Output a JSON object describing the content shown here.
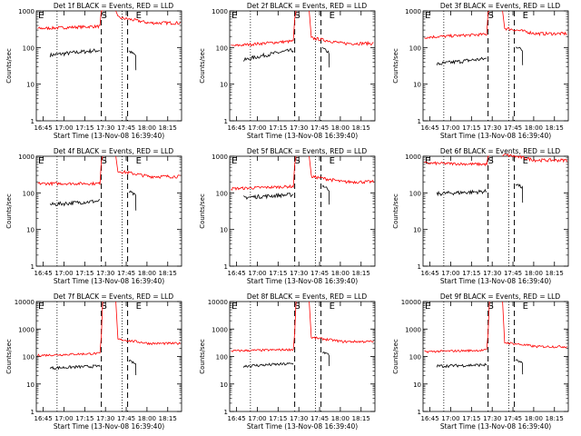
{
  "figure": {
    "x_ticks": [
      "16:45",
      "17:00",
      "17:15",
      "17:30",
      "17:45",
      "18:00",
      "18:15"
    ],
    "y_ticks": [
      "1",
      "10",
      "100",
      "1000",
      "10000"
    ],
    "ylabel": "Counts/sec",
    "xlabel": "Start Time (13-Nov-08 16:39:40)",
    "event_labels": {
      "E": "E",
      "S": "S"
    },
    "colors": {
      "events": "#000000",
      "lld": "#ff0000"
    }
  },
  "chart_data": [
    {
      "type": "line",
      "title": "Det 1f  BLACK = Events, RED = LLD",
      "ylim": [
        1,
        1000
      ],
      "series": [
        {
          "name": "BLACK = Events",
          "color": "#000000",
          "y_start": 62,
          "y_end": 85,
          "y_after": 80
        },
        {
          "name": "RED = LLD",
          "color": "#ff0000",
          "y_start": 330,
          "y_end": 380,
          "y_after": 470
        }
      ]
    },
    {
      "type": "line",
      "title": "Det 2f  BLACK = Events, RED = LLD",
      "ylim": [
        1,
        1000
      ],
      "series": [
        {
          "name": "BLACK = Events",
          "color": "#000000",
          "y_start": 45,
          "y_end": 85,
          "y_after": 95
        },
        {
          "name": "RED = LLD",
          "color": "#ff0000",
          "y_start": 110,
          "y_end": 150,
          "y_after": 130
        }
      ]
    },
    {
      "type": "line",
      "title": "Det 3f  BLACK = Events, RED = LLD",
      "ylim": [
        1,
        1000
      ],
      "series": [
        {
          "name": "BLACK = Events",
          "color": "#000000",
          "y_start": 35,
          "y_end": 50,
          "y_after": 110
        },
        {
          "name": "RED = LLD",
          "color": "#ff0000",
          "y_start": 190,
          "y_end": 230,
          "y_after": 240
        }
      ]
    },
    {
      "type": "line",
      "title": "Det 4f  BLACK = Events, RED = LLD",
      "ylim": [
        1,
        1000
      ],
      "series": [
        {
          "name": "BLACK = Events",
          "color": "#000000",
          "y_start": 48,
          "y_end": 60,
          "y_after": 110
        },
        {
          "name": "RED = LLD",
          "color": "#ff0000",
          "y_start": 180,
          "y_end": 180,
          "y_after": 280
        }
      ]
    },
    {
      "type": "line",
      "title": "Det 5f  BLACK = Events, RED = LLD",
      "ylim": [
        1,
        1000
      ],
      "series": [
        {
          "name": "BLACK = Events",
          "color": "#000000",
          "y_start": 75,
          "y_end": 90,
          "y_after": 160
        },
        {
          "name": "RED = LLD",
          "color": "#ff0000",
          "y_start": 130,
          "y_end": 150,
          "y_after": 200
        }
      ]
    },
    {
      "type": "line",
      "title": "Det 6f  BLACK = Events, RED = LLD",
      "ylim": [
        1,
        1000
      ],
      "series": [
        {
          "name": "BLACK = Events",
          "color": "#000000",
          "y_start": 95,
          "y_end": 110,
          "y_after": 180
        },
        {
          "name": "RED = LLD",
          "color": "#ff0000",
          "y_start": 650,
          "y_end": 600,
          "y_after": 780
        }
      ]
    },
    {
      "type": "line",
      "title": "Det 7f  BLACK = Events, RED = LLD",
      "ylim": [
        1,
        10000
      ],
      "series": [
        {
          "name": "BLACK = Events",
          "color": "#000000",
          "y_start": 38,
          "y_end": 45,
          "y_after": 70
        },
        {
          "name": "RED = LLD",
          "color": "#ff0000",
          "y_start": 110,
          "y_end": 130,
          "y_after": 300
        }
      ]
    },
    {
      "type": "line",
      "title": "Det 8f  BLACK = Events, RED = LLD",
      "ylim": [
        1,
        10000
      ],
      "series": [
        {
          "name": "BLACK = Events",
          "color": "#000000",
          "y_start": 45,
          "y_end": 55,
          "y_after": 150
        },
        {
          "name": "RED = LLD",
          "color": "#ff0000",
          "y_start": 160,
          "y_end": 180,
          "y_after": 350
        }
      ]
    },
    {
      "type": "line",
      "title": "Det 9f  BLACK = Events, RED = LLD",
      "ylim": [
        1,
        10000
      ],
      "series": [
        {
          "name": "BLACK = Events",
          "color": "#000000",
          "y_start": 45,
          "y_end": 50,
          "y_after": 75
        },
        {
          "name": "RED = LLD",
          "color": "#ff0000",
          "y_start": 150,
          "y_end": 170,
          "y_after": 230
        }
      ]
    }
  ]
}
